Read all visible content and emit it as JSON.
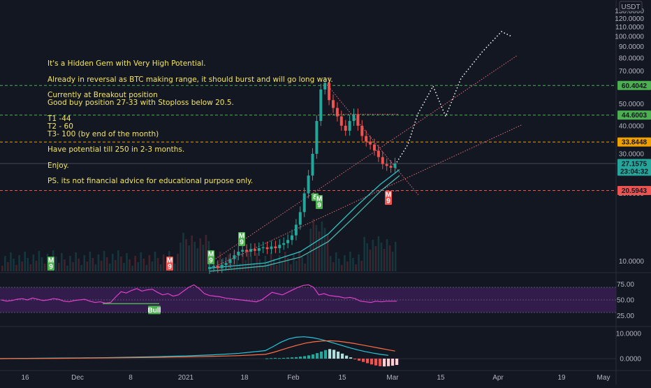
{
  "chart_data": [
    {
      "type": "candlestick",
      "currency": "USDT",
      "y_scale": "log",
      "y_ticks": [
        "10.0000",
        "20.0000",
        "30.0000",
        "40.0000",
        "50.0000",
        "60.0000",
        "70.0000",
        "80.0000",
        "90.0000",
        "100.0000",
        "110.0000",
        "120.0000",
        "130.0000"
      ],
      "x_ticks": [
        "16",
        "Dec",
        "8",
        "2021",
        "18",
        "Feb",
        "15",
        "Mar",
        "15",
        "Apr",
        "19",
        "May"
      ],
      "price_levels": [
        {
          "label": "60.4042",
          "value": 60.4042,
          "color": "#4caf50"
        },
        {
          "label": "44.6003",
          "value": 44.6003,
          "color": "#4caf50"
        },
        {
          "label": "33.8448",
          "value": 33.8448,
          "color": "#f0a100"
        },
        {
          "label": "27.1575",
          "value": 27.1575,
          "color": "#26a69a",
          "countdown": "23:04:32"
        },
        {
          "label": "20.5943",
          "value": 20.5943,
          "color": "#ef5350"
        }
      ],
      "annotation_lines": [
        "It's a Hidden Gem with Very High Potential.",
        "",
        "Already in reversal as BTC making range, it should burst and will go long way.",
        "",
        "Currently at Breakout position",
        "Good buy position 27-33 with Stoploss below 20.5.",
        "",
        "T1 -44",
        "T2 - 60",
        "T3- 100 (by end of the month)",
        "",
        "Have potential till 250 in 2-3 months.",
        "",
        "Enjoy.",
        "",
        "PS. its not financial advice for educational purpose only."
      ],
      "candles_close_approx": [
        9.4,
        9.5,
        9.3,
        9.6,
        9.8,
        10.2,
        10.6,
        11.0,
        11.2,
        11.0,
        11.3,
        11.1,
        11.4,
        11.5,
        11.3,
        11.6,
        11.4,
        11.8,
        12.0,
        12.4,
        13.0,
        14.5,
        16.5,
        20.0,
        24.0,
        30.0,
        42.0,
        58.0,
        62.0,
        52.0,
        48.0,
        44.0,
        40.0,
        38.0,
        42.0,
        45.0,
        40.0,
        36.0,
        34.0,
        33.0,
        31.0,
        29.0,
        27.0,
        26.5,
        26.0,
        27.1575
      ],
      "projection_path": [
        27.5,
        33.0,
        45.0,
        60.0,
        44.0,
        65.0,
        85.0,
        105.0,
        100.0
      ],
      "badges": [
        {
          "text": "M\n9",
          "color": "#4caf50"
        },
        {
          "text": "M\n9",
          "color": "#ef5350"
        },
        {
          "text": "M\n9",
          "color": "#4caf50"
        },
        {
          "text": "M\n9",
          "color": "#4caf50"
        },
        {
          "text": "8",
          "color": "#4caf50"
        },
        {
          "text": "M\n9",
          "color": "#4caf50"
        },
        {
          "text": "M\n9",
          "color": "#ef5350"
        }
      ]
    },
    {
      "type": "line",
      "name": "RSI",
      "y_ticks": [
        "25.00",
        "50.00",
        "75.00"
      ],
      "band": [
        30,
        70
      ],
      "midline": 50,
      "signal_label": "Bull",
      "values": [
        50,
        48,
        49,
        51,
        52,
        50,
        53,
        51,
        49,
        50,
        52,
        51,
        48,
        47,
        49,
        50,
        51,
        48,
        46,
        47,
        45,
        46,
        55,
        63,
        61,
        65,
        68,
        64,
        66,
        67,
        62,
        58,
        60,
        56,
        58,
        64,
        70,
        74,
        68,
        60,
        57,
        56,
        55,
        53,
        52,
        51,
        50,
        49,
        48,
        47,
        50,
        56,
        62,
        60,
        58,
        62,
        66,
        70,
        73,
        74,
        70,
        58,
        60,
        57,
        56,
        55,
        53,
        54,
        52,
        48,
        47,
        46,
        48,
        47,
        48,
        48,
        48
      ]
    },
    {
      "type": "bar",
      "name": "MACD",
      "y_ticks": [
        "0.0000",
        "10.0000"
      ],
      "histogram": [
        0.1,
        0.2,
        0.3,
        0.2,
        0.3,
        0.4,
        0.5,
        0.6,
        0.8,
        1.0,
        1.3,
        1.7,
        2.2,
        2.8,
        3.4,
        3.8,
        3.5,
        2.8,
        2.0,
        1.2,
        0.5,
        -0.2,
        -0.8,
        -1.3,
        -1.8,
        -2.3,
        -2.7,
        -3.0,
        -3.1,
        -3.0,
        -2.8,
        -2.5
      ],
      "macd_line": [
        0.0,
        0.1,
        0.2,
        0.3,
        0.4,
        0.6,
        0.8,
        1.1,
        1.5,
        2.1,
        3.2,
        4.8,
        6.5,
        7.8,
        8.5,
        8.7,
        8.4,
        7.8,
        7.0,
        6.1,
        5.2,
        4.3,
        3.5,
        2.8,
        2.2,
        1.7,
        1.3
      ],
      "signal_line": [
        0.0,
        0.05,
        0.1,
        0.2,
        0.3,
        0.4,
        0.5,
        0.7,
        0.9,
        1.2,
        1.7,
        2.5,
        3.5,
        4.5,
        5.4,
        6.2,
        6.7,
        7.0,
        7.1,
        6.9,
        6.5,
        6.0,
        5.4,
        4.8,
        4.2,
        3.6,
        3.0
      ]
    }
  ]
}
